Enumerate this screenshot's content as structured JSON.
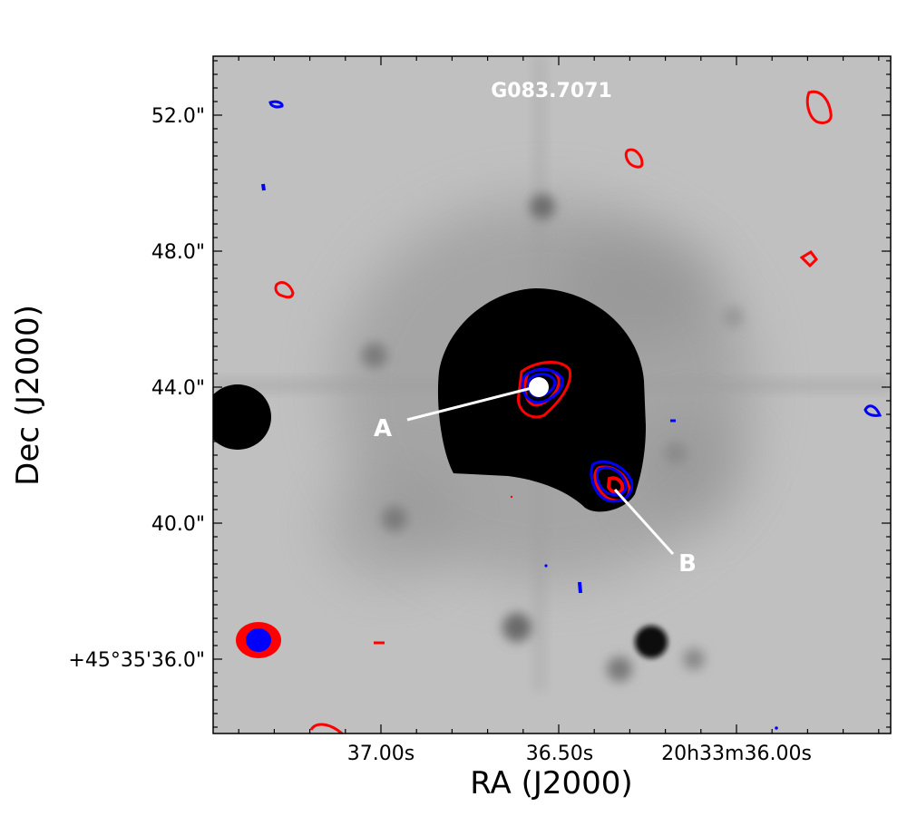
{
  "figure": {
    "title": "G083.7071",
    "xlabel": "RA (J2000)",
    "ylabel": "Dec (J2000)",
    "x_ticks": [
      "37.00s",
      "36.50s",
      "20h33m36.00s"
    ],
    "y_ticks": [
      "52.0\"",
      "48.0\"",
      "44.0\"",
      "40.0\"",
      "+45°35'36.0\""
    ],
    "sources": [
      {
        "name": "A"
      },
      {
        "name": "B"
      }
    ],
    "colors": {
      "contour_red": "#ff0000",
      "contour_blue": "#0000ff",
      "label": "#ffffff"
    },
    "background": "grayscale near-infrared image"
  }
}
